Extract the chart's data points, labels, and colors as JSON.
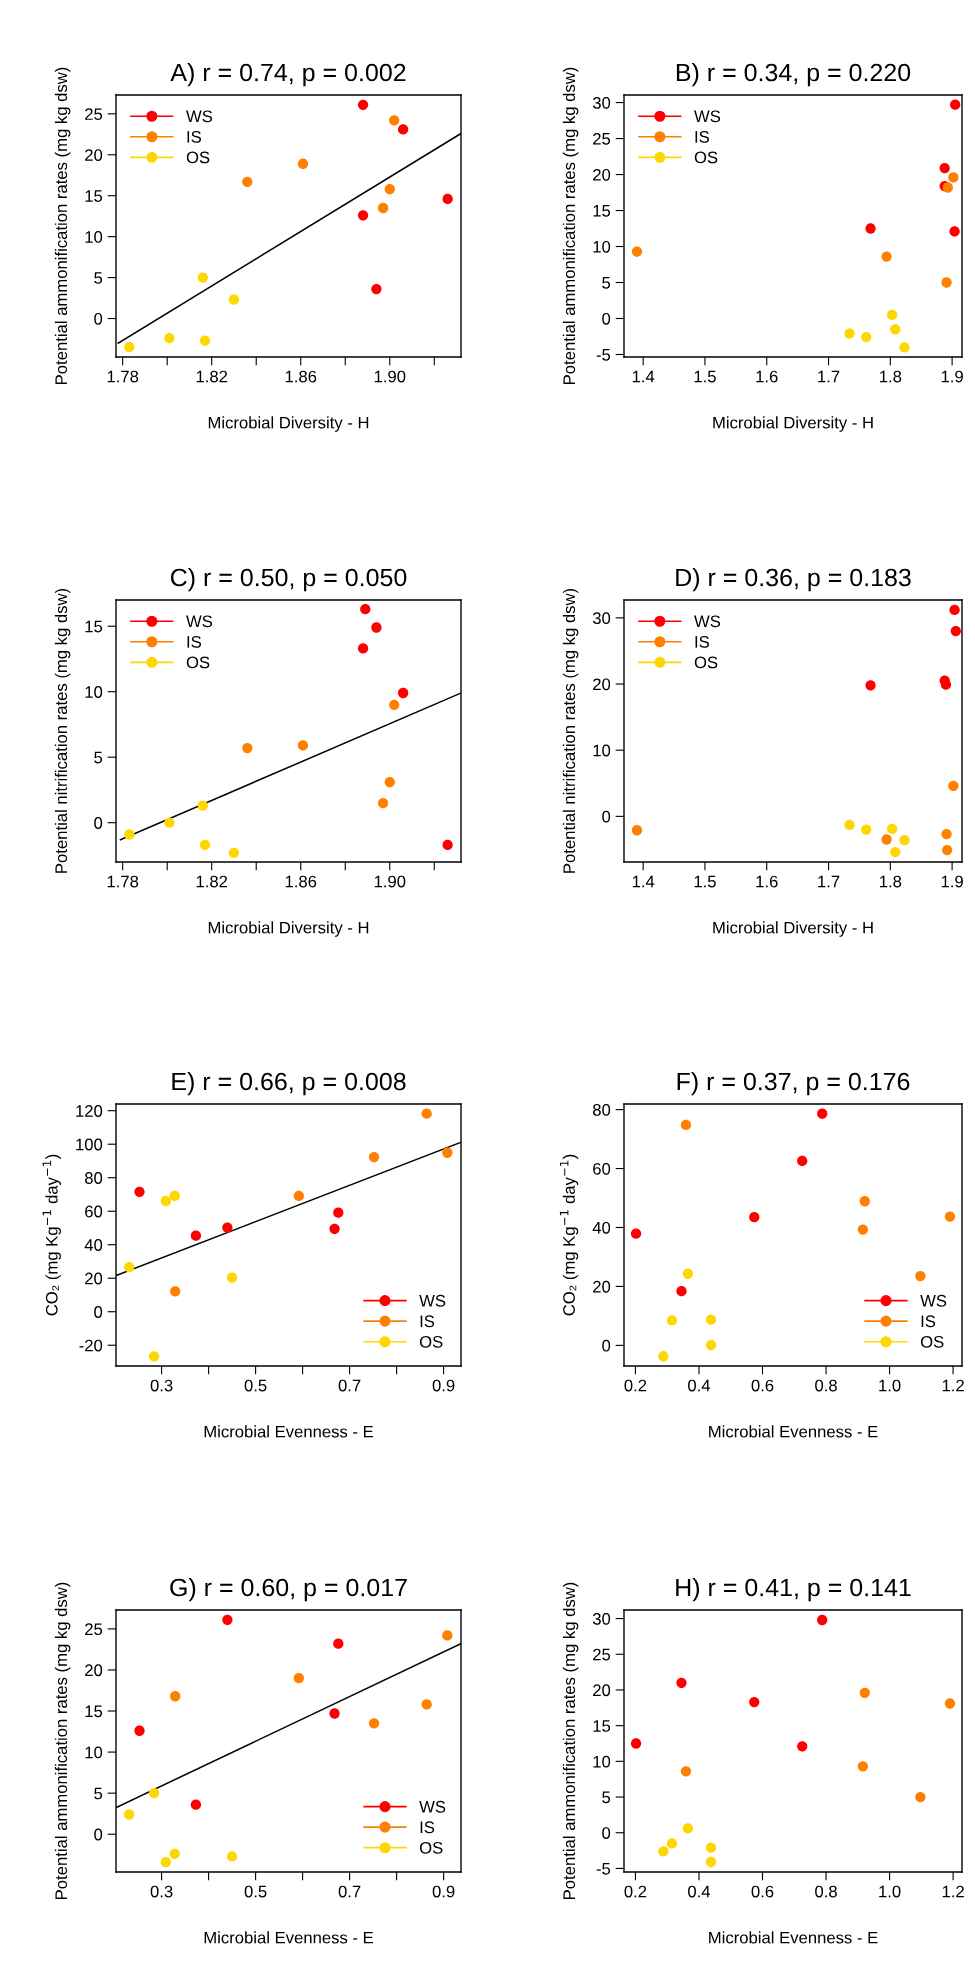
{
  "chart_data": [
    {
      "type": "scatter",
      "title": "A) r = 0.74, p = 0.002",
      "xlabel": "Microbial Diversity - H",
      "ylabel": "Potential ammonification rates (mg kg dsw)",
      "marker": "circle",
      "legend": "top left",
      "xlim": [
        1.777,
        1.932
      ],
      "ylim": [
        -4.7,
        27.3
      ],
      "xticks": [
        1.78,
        {
          "value": 1.8,
          "label": null
        },
        1.82,
        {
          "value": 1.84,
          "label": null
        },
        1.86,
        {
          "value": 1.88,
          "label": null
        },
        {
          "value": 1.9,
          "label": "1.90"
        },
        {
          "value": 1.92,
          "label": null
        }
      ],
      "yticks": [
        0,
        5,
        10,
        15,
        20,
        25
      ],
      "series": [
        {
          "name": "WS",
          "color": "#ff0000",
          "x": [
            1.888,
            1.906,
            1.926,
            1.888,
            1.894
          ],
          "values": [
            26.1,
            23.1,
            14.6,
            12.6,
            3.6
          ]
        },
        {
          "name": "IS",
          "color": "#ff8000",
          "x": [
            1.902,
            1.861,
            1.836,
            1.9,
            1.897
          ],
          "values": [
            24.2,
            18.9,
            16.7,
            15.8,
            13.5
          ]
        },
        {
          "name": "OS",
          "color": "#ffd700",
          "x": [
            1.816,
            1.83,
            1.783,
            1.801,
            1.817
          ],
          "values": [
            5.0,
            2.3,
            -3.5,
            -2.4,
            -2.7
          ]
        },
        {
          "type": "line",
          "marker": "none",
          "color": "#000000",
          "x": [
            1.778,
            1.932
          ],
          "values": [
            -3.0,
            22.6
          ]
        }
      ]
    },
    {
      "type": "scatter",
      "title": "B) r = 0.34, p = 0.220",
      "xlabel": "Microbial Diversity - H",
      "ylabel": "Potential ammonification rates (mg kg dsw)",
      "marker": "circle",
      "legend": "top left",
      "xlim": [
        1.369,
        1.916
      ],
      "ylim": [
        -5.35,
        31.05
      ],
      "xticks": [
        1.4,
        1.5,
        1.6,
        1.7,
        1.8,
        1.9
      ],
      "yticks": [
        -5,
        0,
        5,
        10,
        15,
        20,
        25,
        30
      ],
      "series": [
        {
          "name": "WS",
          "color": "#ff0000",
          "x": [
            1.905,
            1.888,
            1.888,
            1.904,
            1.768
          ],
          "values": [
            29.7,
            20.9,
            18.4,
            12.1,
            12.5
          ]
        },
        {
          "name": "IS",
          "color": "#ff8000",
          "x": [
            1.902,
            1.893,
            1.891,
            1.794,
            1.39
          ],
          "values": [
            19.6,
            18.2,
            5.0,
            8.6,
            9.3
          ]
        },
        {
          "name": "OS",
          "color": "#ffd700",
          "x": [
            1.803,
            1.808,
            1.823,
            1.734,
            1.761
          ],
          "values": [
            0.5,
            -1.5,
            -4.0,
            -2.1,
            -2.6
          ]
        }
      ]
    },
    {
      "type": "scatter",
      "title": "C) r = 0.50, p = 0.050",
      "xlabel": "Microbial Diversity - H",
      "ylabel": "Potential nitrification rates (mg kg dsw)",
      "marker": "circle",
      "legend": "top left",
      "xlim": [
        1.777,
        1.932
      ],
      "ylim": [
        -3.0,
        17.0
      ],
      "xticks": [
        1.78,
        {
          "value": 1.8,
          "label": null
        },
        1.82,
        {
          "value": 1.84,
          "label": null
        },
        1.86,
        {
          "value": 1.88,
          "label": null
        },
        {
          "value": 1.9,
          "label": "1.90"
        },
        {
          "value": 1.92,
          "label": null
        }
      ],
      "yticks": [
        0,
        5,
        10,
        15
      ],
      "series": [
        {
          "name": "WS",
          "color": "#ff0000",
          "x": [
            1.889,
            1.894,
            1.888,
            1.906,
            1.926
          ],
          "values": [
            16.3,
            14.9,
            13.3,
            9.9,
            -1.7
          ]
        },
        {
          "name": "IS",
          "color": "#ff8000",
          "x": [
            1.902,
            1.836,
            1.861,
            1.9,
            1.897
          ],
          "values": [
            9.0,
            5.7,
            5.9,
            3.1,
            1.5
          ]
        },
        {
          "name": "OS",
          "color": "#ffd700",
          "x": [
            1.783,
            1.801,
            1.816,
            1.817,
            1.83
          ],
          "values": [
            -0.9,
            0.0,
            1.3,
            -1.7,
            -2.3
          ]
        },
        {
          "type": "line",
          "marker": "none",
          "color": "#000000",
          "x": [
            1.779,
            1.932
          ],
          "values": [
            -1.3,
            9.9
          ]
        }
      ]
    },
    {
      "type": "scatter",
      "title": "D) r = 0.36, p = 0.183",
      "xlabel": "Microbial Diversity - H",
      "ylabel": "Potential nitrification rates (mg kg dsw)",
      "marker": "circle",
      "legend": "top left",
      "xlim": [
        1.369,
        1.916
      ],
      "ylim": [
        -6.9,
        32.7
      ],
      "xticks": [
        1.4,
        1.5,
        1.6,
        1.7,
        1.8,
        1.9
      ],
      "yticks": [
        0,
        10,
        20,
        30
      ],
      "series": [
        {
          "name": "WS",
          "color": "#ff0000",
          "x": [
            1.904,
            1.906,
            1.888,
            1.89,
            1.768
          ],
          "values": [
            31.2,
            28.0,
            20.5,
            19.9,
            19.8
          ]
        },
        {
          "name": "IS",
          "color": "#ff8000",
          "x": [
            1.902,
            1.891,
            1.892,
            1.794,
            1.39
          ],
          "values": [
            4.6,
            -2.7,
            -5.1,
            -3.5,
            -2.1
          ]
        },
        {
          "name": "OS",
          "color": "#ffd700",
          "x": [
            1.734,
            1.761,
            1.803,
            1.808,
            1.823
          ],
          "values": [
            -1.3,
            -2.0,
            -1.9,
            -5.4,
            -3.6
          ]
        }
      ]
    },
    {
      "type": "scatter",
      "title": "E) r = 0.66, p = 0.008",
      "xlabel": "Microbial Evenness - E",
      "ylabel": "CO₂ (mg Kg$^{−1}$ day$^{−1}$)",
      "marker": "circle",
      "legend": "bottom right",
      "xlim": [
        0.203,
        0.937
      ],
      "ylim": [
        -32.4,
        124.0
      ],
      "xticks": [
        0.3,
        {
          "value": 0.4,
          "label": null
        },
        0.5,
        {
          "value": 0.6,
          "label": null
        },
        0.7,
        {
          "value": 0.8,
          "label": null
        },
        0.9
      ],
      "yticks": [
        -20,
        0,
        20,
        40,
        60,
        80,
        100,
        120
      ],
      "series": [
        {
          "name": "WS",
          "color": "#ff0000",
          "x": [
            0.253,
            0.373,
            0.44,
            0.668,
            0.676
          ],
          "values": [
            71.6,
            45.4,
            50.2,
            49.5,
            59.1
          ]
        },
        {
          "name": "IS",
          "color": "#ff8000",
          "x": [
            0.329,
            0.592,
            0.752,
            0.864,
            0.908
          ],
          "values": [
            12.2,
            69.1,
            92.3,
            118.2,
            94.9
          ]
        },
        {
          "name": "OS",
          "color": "#ffd700",
          "x": [
            0.231,
            0.284,
            0.309,
            0.328,
            0.45
          ],
          "values": [
            26.6,
            -26.6,
            66.1,
            69.1,
            20.3
          ]
        },
        {
          "type": "line",
          "marker": "none",
          "color": "#000000",
          "x": [
            0.205,
            0.937
          ],
          "values": [
            21.8,
            101.2
          ]
        }
      ]
    },
    {
      "type": "scatter",
      "title": "F) r = 0.37, p = 0.176",
      "xlabel": "Microbial Evenness - E",
      "ylabel": "CO₂ (mg Kg$^{−1}$ day$^{−1}$)",
      "marker": "circle",
      "legend": "bottom right",
      "xlim": [
        0.164,
        1.228
      ],
      "ylim": [
        -7.0,
        81.9
      ],
      "xticks": [
        0.2,
        0.4,
        0.6,
        0.8,
        {
          "value": 1.0,
          "label": "1.0"
        },
        1.2
      ],
      "yticks": [
        0,
        20,
        40,
        60,
        80
      ],
      "series": [
        {
          "name": "WS",
          "color": "#ff0000",
          "x": [
            0.202,
            0.345,
            0.574,
            0.725,
            0.788
          ],
          "values": [
            37.9,
            18.4,
            43.5,
            62.6,
            78.6
          ]
        },
        {
          "name": "IS",
          "color": "#ff8000",
          "x": [
            0.359,
            0.922,
            0.916,
            1.19,
            1.097
          ],
          "values": [
            74.8,
            48.9,
            39.3,
            43.7,
            23.5
          ]
        },
        {
          "name": "OS",
          "color": "#ffd700",
          "x": [
            0.365,
            0.315,
            0.438,
            0.438,
            0.288
          ],
          "values": [
            24.3,
            8.5,
            8.7,
            0.1,
            -3.7
          ]
        }
      ]
    },
    {
      "type": "scatter",
      "title": "G) r = 0.60, p = 0.017",
      "xlabel": "Microbial Evenness - E",
      "ylabel": "Potential ammonification rates (mg kg dsw)",
      "marker": "circle",
      "legend": "bottom right",
      "xlim": [
        0.203,
        0.937
      ],
      "ylim": [
        -4.6,
        27.3
      ],
      "xticks": [
        0.3,
        {
          "value": 0.4,
          "label": null
        },
        0.5,
        {
          "value": 0.6,
          "label": null
        },
        0.7,
        {
          "value": 0.8,
          "label": null
        },
        0.9
      ],
      "yticks": [
        0,
        5,
        10,
        15,
        20,
        25
      ],
      "series": [
        {
          "name": "WS",
          "color": "#ff0000",
          "x": [
            0.253,
            0.373,
            0.44,
            0.668,
            0.676
          ],
          "values": [
            12.6,
            3.6,
            26.1,
            14.7,
            23.2
          ]
        },
        {
          "name": "IS",
          "color": "#ff8000",
          "x": [
            0.329,
            0.592,
            0.752,
            0.864,
            0.908
          ],
          "values": [
            16.8,
            19.0,
            13.5,
            15.8,
            24.2
          ]
        },
        {
          "name": "OS",
          "color": "#ffd700",
          "x": [
            0.231,
            0.284,
            0.309,
            0.328,
            0.45
          ],
          "values": [
            2.4,
            5.0,
            -3.4,
            -2.4,
            -2.7
          ]
        },
        {
          "type": "line",
          "marker": "none",
          "color": "#000000",
          "x": [
            0.205,
            0.937
          ],
          "values": [
            3.3,
            23.2
          ]
        }
      ]
    },
    {
      "type": "scatter",
      "title": "H) r = 0.41, p = 0.141",
      "xlabel": "Microbial Evenness - E",
      "ylabel": "Potential ammonification rates (mg kg dsw)",
      "marker": "circle",
      "xlim": [
        0.164,
        1.228
      ],
      "ylim": [
        -5.5,
        31.2
      ],
      "xticks": [
        0.2,
        0.4,
        0.6,
        0.8,
        {
          "value": 1.0,
          "label": "1.0"
        },
        1.2
      ],
      "yticks": [
        -5,
        0,
        5,
        10,
        15,
        20,
        25,
        30
      ],
      "series": [
        {
          "color": "#ff0000",
          "x": [
            0.202,
            0.345,
            0.574,
            0.725,
            0.788
          ],
          "values": [
            12.5,
            21.0,
            18.3,
            12.1,
            29.8
          ]
        },
        {
          "color": "#ff8000",
          "x": [
            0.359,
            0.922,
            0.916,
            1.19,
            1.097
          ],
          "values": [
            8.6,
            19.6,
            9.3,
            18.1,
            5.0
          ]
        },
        {
          "color": "#ffd700",
          "x": [
            0.365,
            0.315,
            0.288,
            0.438,
            0.438
          ],
          "values": [
            0.6,
            -1.5,
            -2.6,
            -2.1,
            -4.1
          ]
        }
      ]
    }
  ]
}
